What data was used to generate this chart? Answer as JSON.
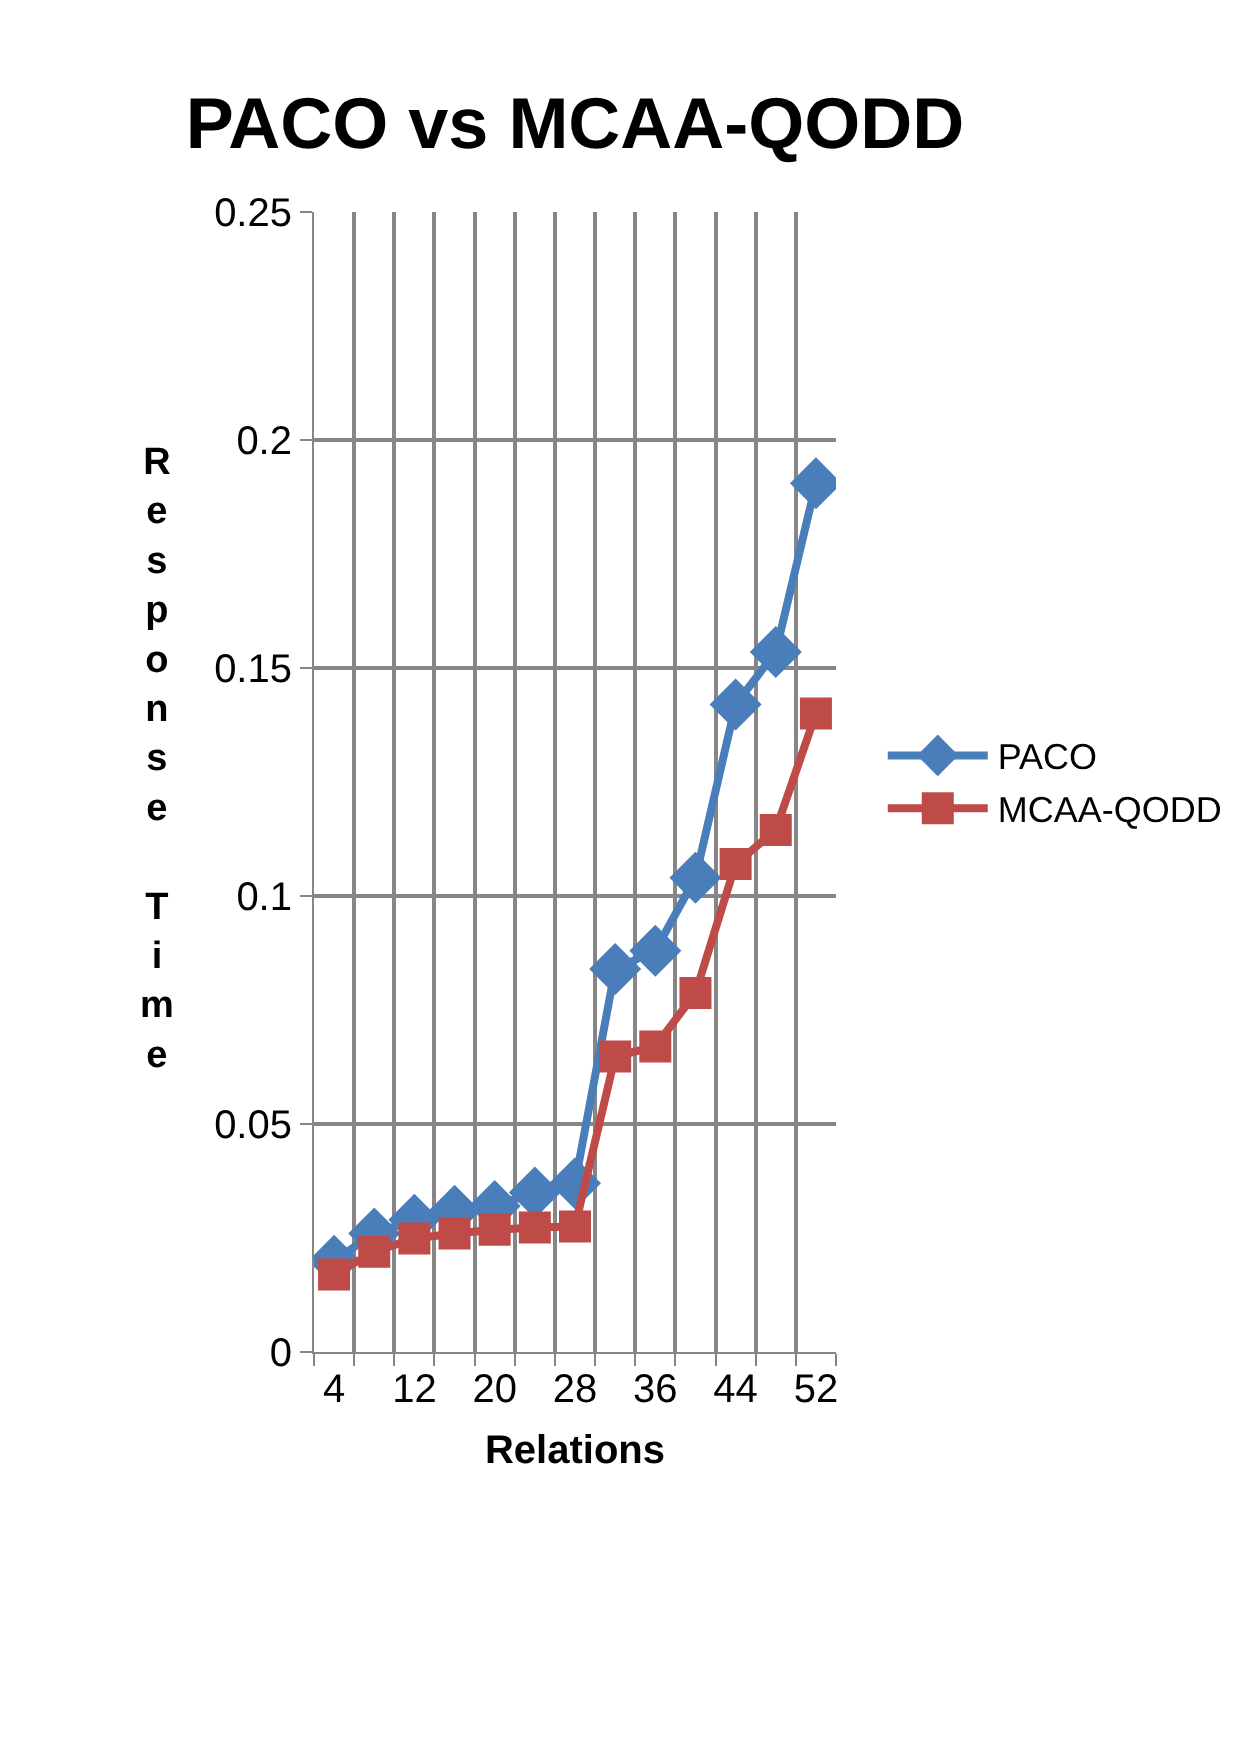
{
  "chart_data": {
    "type": "line",
    "title": "PACO vs MCAA-QODD",
    "xlabel": "Relations",
    "ylabel": "Response Time",
    "categories": [
      "4",
      null,
      "12",
      null,
      "20",
      null,
      "28",
      null,
      "36",
      null,
      "44",
      null,
      "52"
    ],
    "series": [
      {
        "name": "PACO",
        "color": "#4a7ebb",
        "marker": "diamond",
        "values": [
          0.02,
          0.026,
          0.029,
          0.031,
          0.032,
          0.035,
          0.037,
          0.084,
          0.088,
          0.104,
          0.142,
          0.1535,
          0.1905
        ]
      },
      {
        "name": "MCAA-QODD",
        "color": "#be4b48",
        "marker": "square",
        "values": [
          0.017,
          0.022,
          0.0249,
          0.026,
          0.0268,
          0.0273,
          0.0275,
          0.0648,
          0.067,
          0.0787,
          0.107,
          0.1145,
          0.14
        ]
      }
    ],
    "ylim": [
      0,
      0.25
    ],
    "yticks": [
      0,
      0.05,
      {
        "value": 0.1,
        "label": "0.1"
      },
      0.15,
      {
        "value": 0.2,
        "label": "0.2"
      },
      0.25
    ],
    "grid": true,
    "legend": "right",
    "line_style": "solid"
  }
}
